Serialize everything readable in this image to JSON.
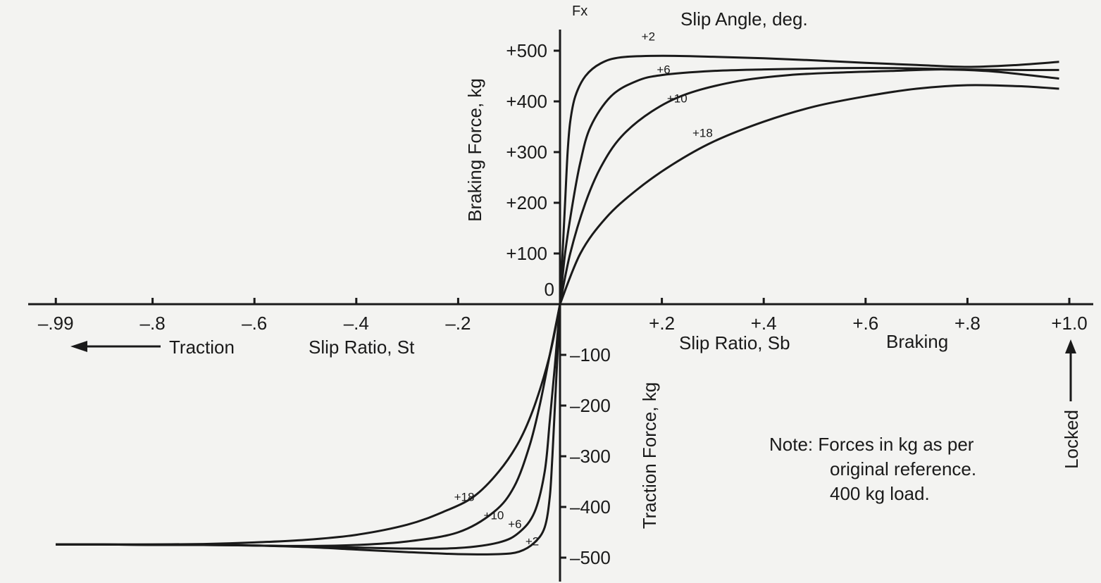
{
  "chart_data": {
    "type": "line",
    "axis_top_label": "Fx",
    "legend_title": "Slip Angle, deg.",
    "y_pos_label": "Braking Force, kg",
    "y_neg_label": "Traction Force, kg",
    "x_neg_label": "Slip Ratio, St",
    "x_pos_label": "Slip Ratio, Sb",
    "traction_label": "Traction",
    "braking_label": "Braking",
    "locked_label": "Locked",
    "note_lines": [
      "Note: Forces in kg as per",
      "original reference.",
      "400 kg load."
    ],
    "x_ticks": [
      {
        "value": -0.99,
        "label": "–.99"
      },
      {
        "value": -0.8,
        "label": "–.8"
      },
      {
        "value": -0.6,
        "label": "–.6"
      },
      {
        "value": -0.4,
        "label": "–.4"
      },
      {
        "value": -0.2,
        "label": "–.2"
      },
      {
        "value": 0.2,
        "label": "+.2"
      },
      {
        "value": 0.4,
        "label": "+.4"
      },
      {
        "value": 0.6,
        "label": "+.6"
      },
      {
        "value": 0.8,
        "label": "+.8"
      },
      {
        "value": 1.0,
        "label": "+1.0"
      }
    ],
    "y_ticks": [
      {
        "value": 500,
        "label": "+500"
      },
      {
        "value": 400,
        "label": "+400"
      },
      {
        "value": 300,
        "label": "+300"
      },
      {
        "value": 200,
        "label": "+200"
      },
      {
        "value": 100,
        "label": "+100"
      },
      {
        "value": 0,
        "label": "0"
      },
      {
        "value": -100,
        "label": "–100"
      },
      {
        "value": -200,
        "label": "–200"
      },
      {
        "value": -300,
        "label": "–300"
      },
      {
        "value": -400,
        "label": "–400"
      },
      {
        "value": -500,
        "label": "–500"
      }
    ],
    "xlim": [
      -1.0,
      1.0
    ],
    "ylim": [
      -540,
      540
    ],
    "series": [
      {
        "name": "+2",
        "braking": [
          [
            0,
            0
          ],
          [
            0.005,
            100
          ],
          [
            0.01,
            200
          ],
          [
            0.015,
            300
          ],
          [
            0.02,
            360
          ],
          [
            0.03,
            410
          ],
          [
            0.05,
            450
          ],
          [
            0.08,
            475
          ],
          [
            0.12,
            487
          ],
          [
            0.2,
            490
          ],
          [
            0.3,
            488
          ],
          [
            0.4,
            485
          ],
          [
            0.5,
            481
          ],
          [
            0.6,
            476
          ],
          [
            0.7,
            472
          ],
          [
            0.8,
            468
          ],
          [
            0.9,
            472
          ],
          [
            0.98,
            478
          ]
        ],
        "traction": [
          [
            0,
            0
          ],
          [
            -0.005,
            -100
          ],
          [
            -0.01,
            -200
          ],
          [
            -0.015,
            -300
          ],
          [
            -0.02,
            -380
          ],
          [
            -0.03,
            -440
          ],
          [
            -0.05,
            -470
          ],
          [
            -0.08,
            -488
          ],
          [
            -0.12,
            -493
          ],
          [
            -0.2,
            -493
          ],
          [
            -0.3,
            -489
          ],
          [
            -0.4,
            -484
          ],
          [
            -0.5,
            -479
          ],
          [
            -0.6,
            -476
          ],
          [
            -0.7,
            -474
          ],
          [
            -0.8,
            -474
          ],
          [
            -0.9,
            -474
          ],
          [
            -0.99,
            -474
          ]
        ]
      },
      {
        "name": "+6",
        "braking": [
          [
            0,
            0
          ],
          [
            0.01,
            100
          ],
          [
            0.025,
            200
          ],
          [
            0.04,
            280
          ],
          [
            0.06,
            350
          ],
          [
            0.1,
            410
          ],
          [
            0.15,
            440
          ],
          [
            0.2,
            452
          ],
          [
            0.3,
            460
          ],
          [
            0.4,
            463
          ],
          [
            0.5,
            465
          ],
          [
            0.6,
            466
          ],
          [
            0.7,
            465
          ],
          [
            0.8,
            463
          ],
          [
            0.9,
            462
          ],
          [
            0.98,
            462
          ]
        ],
        "traction": [
          [
            0,
            0
          ],
          [
            -0.01,
            -120
          ],
          [
            -0.02,
            -230
          ],
          [
            -0.03,
            -330
          ],
          [
            -0.05,
            -410
          ],
          [
            -0.08,
            -450
          ],
          [
            -0.12,
            -470
          ],
          [
            -0.2,
            -481
          ],
          [
            -0.3,
            -482
          ],
          [
            -0.4,
            -480
          ],
          [
            -0.5,
            -478
          ],
          [
            -0.6,
            -476
          ],
          [
            -0.7,
            -475
          ],
          [
            -0.8,
            -475
          ],
          [
            -0.9,
            -474
          ],
          [
            -0.99,
            -474
          ]
        ]
      },
      {
        "name": "+10",
        "braking": [
          [
            0,
            0
          ],
          [
            0.02,
            100
          ],
          [
            0.05,
            200
          ],
          [
            0.08,
            270
          ],
          [
            0.12,
            330
          ],
          [
            0.18,
            380
          ],
          [
            0.25,
            415
          ],
          [
            0.35,
            440
          ],
          [
            0.45,
            452
          ],
          [
            0.55,
            457
          ],
          [
            0.65,
            460
          ],
          [
            0.75,
            463
          ],
          [
            0.85,
            459
          ],
          [
            0.98,
            445
          ]
        ],
        "traction": [
          [
            0,
            0
          ],
          [
            -0.02,
            -100
          ],
          [
            -0.04,
            -200
          ],
          [
            -0.06,
            -280
          ],
          [
            -0.09,
            -360
          ],
          [
            -0.13,
            -410
          ],
          [
            -0.2,
            -450
          ],
          [
            -0.3,
            -468
          ],
          [
            -0.4,
            -475
          ],
          [
            -0.5,
            -477
          ],
          [
            -0.6,
            -476
          ],
          [
            -0.7,
            -475
          ],
          [
            -0.8,
            -475
          ],
          [
            -0.9,
            -474
          ],
          [
            -0.99,
            -474
          ]
        ]
      },
      {
        "name": "+18",
        "braking": [
          [
            0,
            0
          ],
          [
            0.04,
            100
          ],
          [
            0.09,
            170
          ],
          [
            0.15,
            225
          ],
          [
            0.22,
            275
          ],
          [
            0.3,
            320
          ],
          [
            0.4,
            360
          ],
          [
            0.5,
            390
          ],
          [
            0.6,
            410
          ],
          [
            0.7,
            425
          ],
          [
            0.8,
            432
          ],
          [
            0.9,
            430
          ],
          [
            0.98,
            425
          ]
        ],
        "traction": [
          [
            0,
            0
          ],
          [
            -0.02,
            -100
          ],
          [
            -0.05,
            -200
          ],
          [
            -0.08,
            -270
          ],
          [
            -0.12,
            -330
          ],
          [
            -0.17,
            -380
          ],
          [
            -0.23,
            -410
          ],
          [
            -0.3,
            -435
          ],
          [
            -0.4,
            -455
          ],
          [
            -0.5,
            -465
          ],
          [
            -0.6,
            -470
          ],
          [
            -0.7,
            -473
          ],
          [
            -0.8,
            -474
          ],
          [
            -0.9,
            -474
          ],
          [
            -0.99,
            -474
          ]
        ]
      }
    ],
    "curve_labels": [
      {
        "series": "+2",
        "x": 0.16,
        "y": 520
      },
      {
        "series": "+6",
        "x": 0.19,
        "y": 455
      },
      {
        "series": "+10",
        "x": 0.21,
        "y": 398
      },
      {
        "series": "+18",
        "x": 0.26,
        "y": 330
      },
      {
        "series": "+18",
        "x": -0.208,
        "y": -388
      },
      {
        "series": "+10",
        "x": -0.15,
        "y": -424
      },
      {
        "series": "+6",
        "x": -0.102,
        "y": -442
      },
      {
        "series": "+2",
        "x": -0.068,
        "y": -476
      }
    ]
  }
}
